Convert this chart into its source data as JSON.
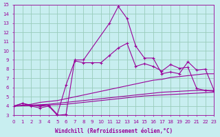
{
  "xlabel": "Windchill (Refroidissement éolien,°C)",
  "xlim": [
    0,
    23
  ],
  "ylim": [
    3,
    15
  ],
  "xticks": [
    0,
    1,
    2,
    3,
    4,
    5,
    6,
    7,
    8,
    9,
    10,
    11,
    12,
    13,
    14,
    15,
    16,
    17,
    18,
    19,
    20,
    21,
    22,
    23
  ],
  "yticks": [
    3,
    4,
    5,
    6,
    7,
    8,
    9,
    10,
    11,
    12,
    13,
    14,
    15
  ],
  "background_color": "#c8eef0",
  "line_color": "#990099",
  "grid_color": "#99ccbb",
  "series": [
    {
      "x": [
        0,
        1,
        2,
        3,
        4,
        5,
        6,
        7,
        8,
        11,
        12,
        13,
        14,
        15,
        16,
        17,
        18,
        19,
        20,
        21,
        22,
        23
      ],
      "y": [
        4,
        4.3,
        4,
        3.8,
        4,
        3,
        3.1,
        9,
        9,
        13,
        14.8,
        13.5,
        10.5,
        9.2,
        9.2,
        7.5,
        7.7,
        7.5,
        8.8,
        7.9,
        8.0,
        5.7
      ],
      "marker": true
    },
    {
      "x": [
        0,
        1,
        2,
        3,
        4,
        5,
        6,
        7,
        8,
        9,
        10,
        11,
        12,
        13,
        14,
        15,
        16,
        17,
        18,
        19,
        20,
        21,
        22,
        23
      ],
      "y": [
        4,
        4.3,
        4.1,
        4.0,
        4.1,
        3.1,
        6.3,
        8.9,
        8.7,
        8.7,
        8.7,
        9.5,
        10.3,
        10.8,
        8.3,
        8.6,
        8.3,
        7.8,
        8.5,
        8.1,
        8.2,
        5.9,
        5.7,
        5.6
      ],
      "marker": true
    },
    {
      "x": [
        0,
        1,
        2,
        3,
        4,
        5,
        6,
        7,
        8,
        9,
        10,
        11,
        12,
        13,
        14,
        15,
        16,
        17,
        18,
        19,
        20,
        21,
        22,
        23
      ],
      "y": [
        4,
        4.1,
        4.2,
        4.4,
        4.5,
        4.6,
        4.8,
        5.0,
        5.2,
        5.4,
        5.6,
        5.8,
        6.0,
        6.2,
        6.4,
        6.6,
        6.8,
        6.9,
        7.1,
        7.2,
        7.3,
        7.4,
        7.5,
        7.5
      ],
      "marker": false
    },
    {
      "x": [
        0,
        1,
        2,
        3,
        4,
        5,
        6,
        7,
        8,
        9,
        10,
        11,
        12,
        13,
        14,
        15,
        16,
        17,
        18,
        19,
        20,
        21,
        22,
        23
      ],
      "y": [
        4,
        4.05,
        4.1,
        4.15,
        4.2,
        4.3,
        4.4,
        4.5,
        4.6,
        4.7,
        4.8,
        4.9,
        5.0,
        5.1,
        5.2,
        5.3,
        5.4,
        5.5,
        5.55,
        5.6,
        5.65,
        5.7,
        5.7,
        5.7
      ],
      "marker": false
    },
    {
      "x": [
        0,
        1,
        2,
        3,
        4,
        5,
        6,
        7,
        8,
        9,
        10,
        11,
        12,
        13,
        14,
        15,
        16,
        17,
        18,
        19,
        20,
        21,
        22,
        23
      ],
      "y": [
        4,
        4.03,
        4.06,
        4.09,
        4.12,
        4.15,
        4.2,
        4.3,
        4.4,
        4.5,
        4.6,
        4.7,
        4.8,
        4.9,
        5.0,
        5.1,
        5.15,
        5.2,
        5.25,
        5.3,
        5.35,
        5.4,
        5.45,
        5.5
      ],
      "marker": false
    }
  ]
}
